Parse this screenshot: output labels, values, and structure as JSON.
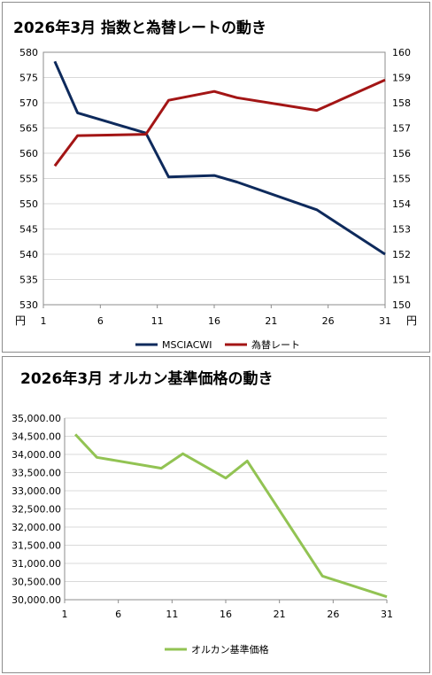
{
  "chart_data": [
    {
      "type": "line",
      "title": "2026年3月 指数と為替レートの動き",
      "x_ticks": [
        1,
        6,
        11,
        16,
        21,
        26,
        31
      ],
      "xlim": [
        1,
        31
      ],
      "y_left": {
        "ylim": [
          530,
          580
        ],
        "ticks": [
          530,
          535,
          540,
          545,
          550,
          555,
          560,
          565,
          570,
          575,
          580
        ],
        "unit": "円"
      },
      "y_right": {
        "ylim": [
          150,
          160
        ],
        "ticks": [
          150,
          151,
          152,
          153,
          154,
          155,
          156,
          157,
          158,
          159,
          160
        ],
        "unit": "円"
      },
      "series": [
        {
          "name": "MSCIACWI",
          "axis": "left",
          "color": "#0e2a5c",
          "x": [
            2,
            4,
            10,
            12,
            16,
            18,
            25,
            31
          ],
          "y": [
            578.2,
            568,
            564,
            555.3,
            555.6,
            554.3,
            548.8,
            540
          ]
        },
        {
          "name": "為替レート",
          "axis": "right",
          "color": "#a31515",
          "x": [
            2,
            4,
            10,
            12,
            16,
            18,
            25,
            31
          ],
          "y": [
            155.5,
            156.7,
            156.75,
            158.1,
            158.45,
            158.2,
            157.7,
            158.9
          ]
        }
      ],
      "legend": "bottom"
    },
    {
      "type": "line",
      "title": "2026年3月 オルカン基準価格の動き",
      "x_ticks": [
        1,
        6,
        11,
        16,
        21,
        26,
        31
      ],
      "xlim": [
        1,
        31
      ],
      "y_left": {
        "ylim": [
          30000,
          35000
        ],
        "ticks": [
          "30,000.00",
          "30,500.00",
          "31,000.00",
          "31,500.00",
          "32,000.00",
          "32,500.00",
          "33,000.00",
          "33,500.00",
          "34,000.00",
          "34,500.00",
          "35,000.00"
        ]
      },
      "series": [
        {
          "name": "オルカン基準価格",
          "axis": "left",
          "color": "#92c353",
          "x": [
            2,
            4,
            10,
            12,
            16,
            18,
            25,
            31
          ],
          "y": [
            34550,
            33920,
            33620,
            34020,
            33350,
            33820,
            30650,
            30080
          ]
        }
      ],
      "legend": "bottom"
    }
  ]
}
